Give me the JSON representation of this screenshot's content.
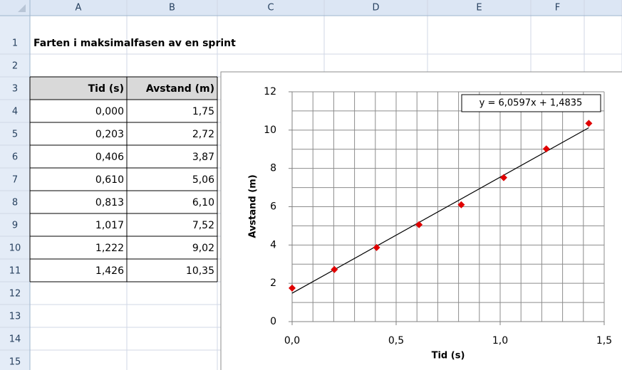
{
  "columns": [
    "A",
    "B",
    "C",
    "D",
    "E",
    "F"
  ],
  "rows": [
    "1",
    "2",
    "3",
    "4",
    "5",
    "6",
    "7",
    "8",
    "9",
    "10",
    "11",
    "12",
    "13",
    "14",
    "15"
  ],
  "sheet_title": "Farten i maksimalfasen av en sprint",
  "table": {
    "header": [
      "Tid (s)",
      "Avstand (m)"
    ],
    "rows": [
      [
        "0,000",
        "1,75"
      ],
      [
        "0,203",
        "2,72"
      ],
      [
        "0,406",
        "3,87"
      ],
      [
        "0,610",
        "5,06"
      ],
      [
        "0,813",
        "6,10"
      ],
      [
        "1,017",
        "7,52"
      ],
      [
        "1,222",
        "9,02"
      ],
      [
        "1,426",
        "10,35"
      ]
    ]
  },
  "chart_data": {
    "type": "scatter",
    "xlabel": "Tid (s)",
    "ylabel": "Avstand (m)",
    "x": [
      0,
      0.203,
      0.406,
      0.61,
      0.813,
      1.017,
      1.222,
      1.426
    ],
    "values": [
      1.75,
      2.72,
      3.87,
      5.06,
      6.1,
      7.52,
      9.02,
      10.35
    ],
    "color": "#e00000",
    "xlim": [
      0,
      1.5
    ],
    "ylim": [
      0,
      12
    ],
    "xticks": [
      {
        "value": 0,
        "label": "0,0"
      },
      {
        "value": 0.5,
        "label": "0,5"
      },
      {
        "value": 1,
        "label": "1,0"
      },
      {
        "value": 1.5,
        "label": "1,5"
      }
    ],
    "yticks": [
      0,
      2,
      4,
      6,
      8,
      10,
      12
    ],
    "grid": true,
    "x_grid_step": 0.1,
    "y_grid_step": 1,
    "trendline": {
      "slope": 6.0597,
      "intercept": 1.4835,
      "label": "y = 6,0597x + 1,4835",
      "color": "#000000"
    }
  }
}
